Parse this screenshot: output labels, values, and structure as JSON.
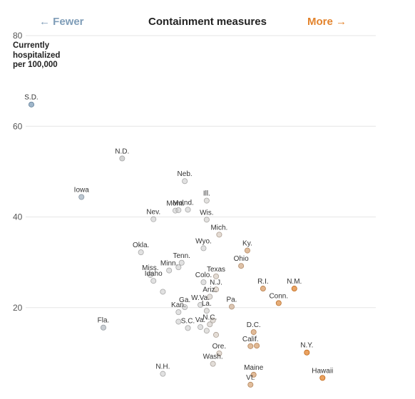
{
  "header": {
    "fewer": "← Fewer",
    "title": "Containment measures",
    "more": "More →"
  },
  "chart_data": {
    "type": "scatter",
    "title": "Containment measures",
    "ylabel": "Currently hospitalized per 100,000",
    "ylabel_lines": [
      "Currently",
      "hospitalized",
      "per 100,000"
    ],
    "ylim": [
      0,
      80
    ],
    "yticks": [
      20,
      40,
      60,
      80
    ],
    "grid": true,
    "x_axis_note": "Containment measures: fewer (left) to more (right); no numeric x scale shown",
    "colors": {
      "fewer": "#7f9db8",
      "neutral": "#c8c8c8",
      "more": "#e3832c"
    },
    "points": [
      {
        "name": "S.D.",
        "x": 0.0,
        "y": 64.8
      },
      {
        "name": "Iowa",
        "x": 0.16,
        "y": 44.4
      },
      {
        "name": "Fla.",
        "x": 0.23,
        "y": 15.6
      },
      {
        "name": "N.D.",
        "x": 0.29,
        "y": 52.9
      },
      {
        "name": "Nev.",
        "x": 0.39,
        "y": 39.5
      },
      {
        "name": "Okla.",
        "x": 0.35,
        "y": 32.2
      },
      {
        "name": "Miss.",
        "x": 0.38,
        "y": 27.2
      },
      {
        "name": "Idaho",
        "x": 0.39,
        "y": 25.9
      },
      {
        "name": "",
        "x": 0.42,
        "y": 23.5
      },
      {
        "name": "Mont.",
        "x": 0.46,
        "y": 41.4
      },
      {
        "name": "Mo.",
        "x": 0.47,
        "y": 41.5
      },
      {
        "name": "Ind.",
        "x": 0.5,
        "y": 41.6
      },
      {
        "name": "Neb.",
        "x": 0.49,
        "y": 47.9
      },
      {
        "name": "Ill.",
        "x": 0.56,
        "y": 43.6
      },
      {
        "name": "Wis.",
        "x": 0.56,
        "y": 39.4
      },
      {
        "name": "Mich.",
        "x": 0.6,
        "y": 36.1
      },
      {
        "name": "Wyo.",
        "x": 0.55,
        "y": 33.1
      },
      {
        "name": "Ky.",
        "x": 0.69,
        "y": 32.6
      },
      {
        "name": "Tenn.",
        "x": 0.48,
        "y": 29.9
      },
      {
        "name": "Minn.",
        "x": 0.44,
        "y": 28.2
      },
      {
        "name": "",
        "x": 0.47,
        "y": 28.9
      },
      {
        "name": "Ohio",
        "x": 0.67,
        "y": 29.2
      },
      {
        "name": "Texas",
        "x": 0.59,
        "y": 26.9
      },
      {
        "name": "Colo.",
        "x": 0.55,
        "y": 25.6
      },
      {
        "name": "N.J.",
        "x": 0.59,
        "y": 24.0
      },
      {
        "name": "Ariz.",
        "x": 0.57,
        "y": 22.4
      },
      {
        "name": "W.Va.",
        "x": 0.54,
        "y": 20.6
      },
      {
        "name": "Ga.",
        "x": 0.49,
        "y": 20.1
      },
      {
        "name": "Kan.",
        "x": 0.47,
        "y": 19.0
      },
      {
        "name": "La.",
        "x": 0.56,
        "y": 19.3
      },
      {
        "name": "Pa.",
        "x": 0.64,
        "y": 20.2
      },
      {
        "name": "",
        "x": 0.58,
        "y": 17.2
      },
      {
        "name": "S.C.",
        "x": 0.5,
        "y": 15.5
      },
      {
        "name": "",
        "x": 0.47,
        "y": 16.9
      },
      {
        "name": "Va.",
        "x": 0.54,
        "y": 15.7
      },
      {
        "name": "",
        "x": 0.56,
        "y": 14.9
      },
      {
        "name": "N.C.",
        "x": 0.57,
        "y": 16.3
      },
      {
        "name": "",
        "x": 0.59,
        "y": 14.0
      },
      {
        "name": "R.I.",
        "x": 0.74,
        "y": 24.2
      },
      {
        "name": "N.M.",
        "x": 0.84,
        "y": 24.2
      },
      {
        "name": "Conn.",
        "x": 0.79,
        "y": 21.0
      },
      {
        "name": "D.C.",
        "x": 0.71,
        "y": 14.6
      },
      {
        "name": "Calif.",
        "x": 0.7,
        "y": 11.5
      },
      {
        "name": "",
        "x": 0.72,
        "y": 11.6
      },
      {
        "name": "Ore.",
        "x": 0.6,
        "y": 9.9
      },
      {
        "name": "Wash.",
        "x": 0.58,
        "y": 7.6
      },
      {
        "name": "N.H.",
        "x": 0.42,
        "y": 5.4
      },
      {
        "name": "Maine",
        "x": 0.71,
        "y": 5.2
      },
      {
        "name": "Vt.",
        "x": 0.7,
        "y": 3.0
      },
      {
        "name": "N.Y.",
        "x": 0.88,
        "y": 10.1
      },
      {
        "name": "Hawaii",
        "x": 0.93,
        "y": 4.5
      }
    ]
  }
}
